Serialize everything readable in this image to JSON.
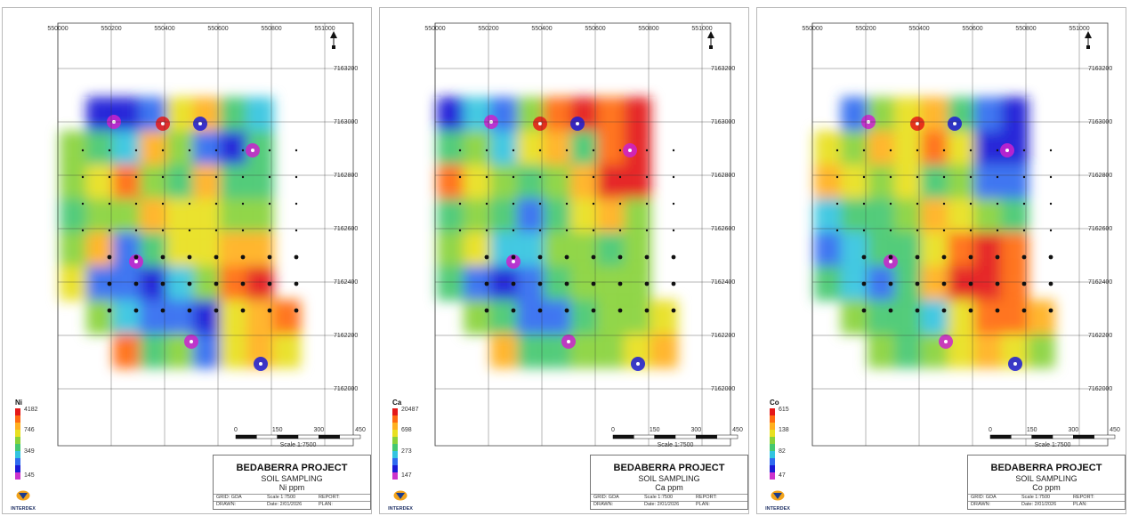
{
  "panels": [
    {
      "id": "ni",
      "x_ticks": [
        "550000",
        "550200",
        "550400",
        "550600",
        "550800",
        "551000"
      ],
      "y_ticks": [
        "7163200",
        "7163000",
        "7162800",
        "7162600",
        "7162400",
        "7162200",
        "7162000"
      ],
      "legend": {
        "title": "Ni",
        "values": [
          "4182",
          "746",
          "349",
          "145"
        ]
      },
      "scale": {
        "ticks": [
          "0",
          "150",
          "300",
          "450"
        ],
        "label": "Scale 1:7500"
      },
      "title": {
        "project": "BEDABERRA PROJECT",
        "subtitle": "SOIL SAMPLING",
        "element": "Ni ppm"
      },
      "info": {
        "grid": "GRID: GDA",
        "scale": "Scale 1:7500",
        "report": "REPORT:",
        "drawn": "DRAWN:",
        "date": "Date: 2/01/2026",
        "plan": "PLAN:"
      },
      "logo": "INTERDEX"
    },
    {
      "id": "ca",
      "x_ticks": [
        "550000",
        "550200",
        "550400",
        "550600",
        "550800",
        "551000"
      ],
      "y_ticks": [
        "7163200",
        "7163000",
        "7162800",
        "7162600",
        "7162400",
        "7162200",
        "7162000"
      ],
      "legend": {
        "title": "Ca",
        "values": [
          "20487",
          "698",
          "273",
          "147"
        ]
      },
      "scale": {
        "ticks": [
          "0",
          "150",
          "300",
          "450"
        ],
        "label": "Scale 1:7500"
      },
      "title": {
        "project": "BEDABERRA PROJECT",
        "subtitle": "SOIL SAMPLING",
        "element": "Ca ppm"
      },
      "info": {
        "grid": "GRID: GDA",
        "scale": "Scale 1:7500",
        "report": "REPORT:",
        "drawn": "DRAWN:",
        "date": "Date: 2/01/2026",
        "plan": "PLAN:"
      },
      "logo": "INTERDEX"
    },
    {
      "id": "co",
      "x_ticks": [
        "550000",
        "550200",
        "550400",
        "550600",
        "550800",
        "551000"
      ],
      "y_ticks": [
        "7163200",
        "7163000",
        "7162800",
        "7162600",
        "7162400",
        "7162200",
        "7162000"
      ],
      "legend": {
        "title": "Co",
        "values": [
          "615",
          "138",
          "82",
          "47"
        ]
      },
      "scale": {
        "ticks": [
          "0",
          "150",
          "300",
          "450"
        ],
        "label": "Scale 1:7500"
      },
      "title": {
        "project": "BEDABERRA PROJECT",
        "subtitle": "SOIL SAMPLING",
        "element": "Co ppm"
      },
      "info": {
        "grid": "GRID: GDA",
        "scale": "Scale 1:7500",
        "report": "REPORT:",
        "drawn": "DRAWN:",
        "date": "Date: 2/01/2026",
        "plan": "PLAN:"
      },
      "logo": "INTERDEX"
    }
  ],
  "colors": {
    "low": "#2a2acc",
    "mid_low": "#33cccc",
    "mid": "#66cc44",
    "mid_high": "#f0d020",
    "high": "#ff7700",
    "peak": "#e02020",
    "max": "#cc33cc"
  }
}
